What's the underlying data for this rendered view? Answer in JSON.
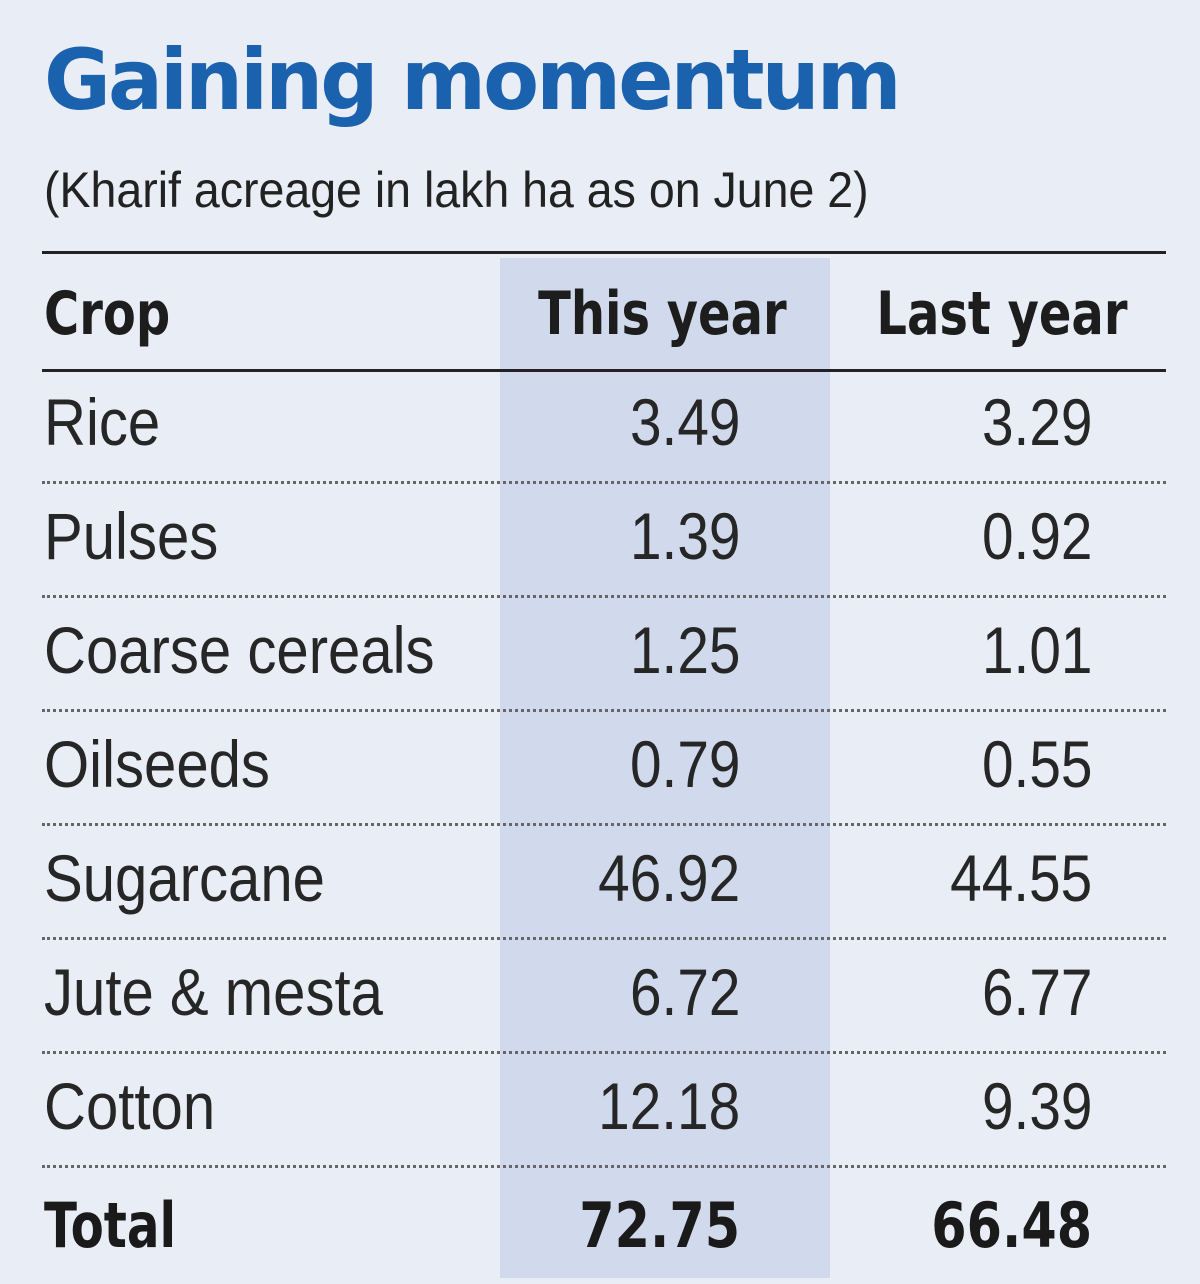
{
  "chart_data": {
    "type": "table",
    "title": "Gaining momentum",
    "subtitle": "(Kharif acreage in lakh ha as on June 2)",
    "columns": [
      "Crop",
      "This year",
      "Last year"
    ],
    "rows": [
      {
        "crop": "Rice",
        "this_year": "3.49",
        "last_year": "3.29"
      },
      {
        "crop": "Pulses",
        "this_year": "1.39",
        "last_year": "0.92"
      },
      {
        "crop": "Coarse cereals",
        "this_year": "1.25",
        "last_year": "1.01"
      },
      {
        "crop": "Oilseeds",
        "this_year": "0.79",
        "last_year": "0.55"
      },
      {
        "crop": "Sugarcane",
        "this_year": "46.92",
        "last_year": "44.55"
      },
      {
        "crop": "Jute & mesta",
        "this_year": "6.72",
        "last_year": "6.77"
      },
      {
        "crop": "Cotton",
        "this_year": "12.18",
        "last_year": "9.39"
      }
    ],
    "total": {
      "crop": "Total",
      "this_year": "72.75",
      "last_year": "66.48"
    },
    "highlighted_column": "This year",
    "colors": {
      "title": "#1a62ad",
      "background": "#e9edf6",
      "highlight_column": "#d1daec",
      "text": "#262626"
    }
  }
}
